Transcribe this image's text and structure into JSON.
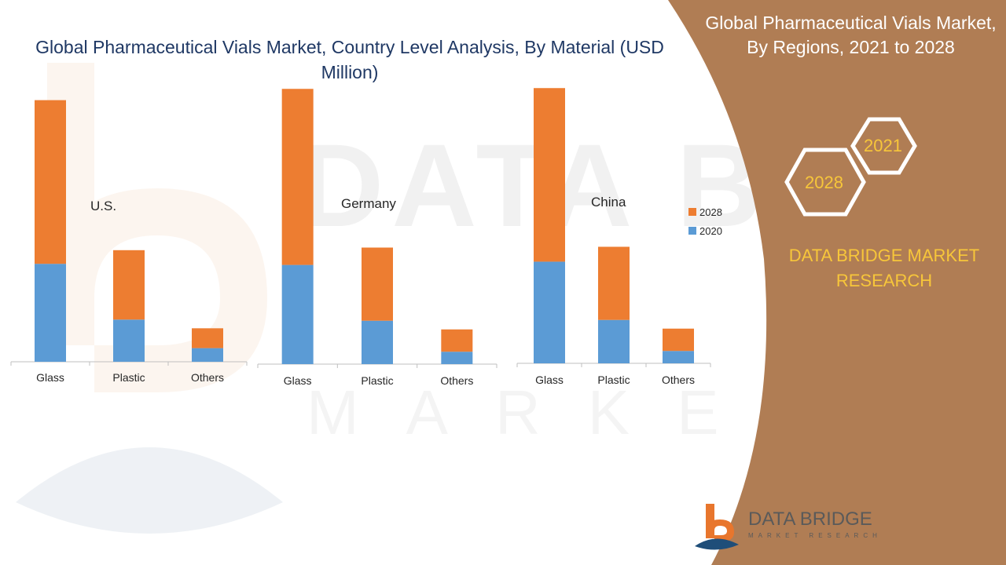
{
  "header": {
    "title": "Global Pharmaceutical Vials Market, Country Level Analysis, By Material (USD Million)"
  },
  "side_panel": {
    "title": "Global  Pharmaceutical Vials Market, By Regions, 2021 to 2028",
    "hex_year_top": "2021",
    "hex_year_bottom": "2028",
    "company": "DATA BRIDGE MARKET RESEARCH",
    "colors": {
      "panel": "#b07d54",
      "accent": "#f7c63a",
      "hex_stroke": "#ffffff"
    }
  },
  "logo": {
    "name": "DATA BRIDGE",
    "sub": "MARKET RESEARCH"
  },
  "watermark": {
    "text": "DATA BRIDGE",
    "sub": "MARKET RESEARCH"
  },
  "chart_data": [
    {
      "type": "bar",
      "stacked": true,
      "label": "U.S.",
      "categories": [
        "Glass",
        "Plastic",
        "Others"
      ],
      "series": [
        {
          "name": "2020",
          "color": "#5b9bd5",
          "values": [
            79,
            34,
            11
          ]
        },
        {
          "name": "2028",
          "color": "#ed7d31",
          "values": [
            132,
            56,
            16
          ]
        }
      ]
    },
    {
      "type": "bar",
      "stacked": true,
      "label": "Germany",
      "categories": [
        "Glass",
        "Plastic",
        "Others"
      ],
      "series": [
        {
          "name": "2020",
          "color": "#5b9bd5",
          "values": [
            80,
            35,
            10
          ]
        },
        {
          "name": "2028",
          "color": "#ed7d31",
          "values": [
            142,
            59,
            18
          ]
        }
      ]
    },
    {
      "type": "bar",
      "stacked": true,
      "label": "China",
      "categories": [
        "Glass",
        "Plastic",
        "Others"
      ],
      "series": [
        {
          "name": "2020",
          "color": "#5b9bd5",
          "values": [
            82,
            35,
            10
          ]
        },
        {
          "name": "2028",
          "color": "#ed7d31",
          "values": [
            140,
            59,
            18
          ]
        }
      ]
    }
  ],
  "legend": {
    "placement": "right",
    "items": [
      {
        "label": "2028",
        "color": "#ed7d31"
      },
      {
        "label": "2020",
        "color": "#5b9bd5"
      }
    ]
  }
}
